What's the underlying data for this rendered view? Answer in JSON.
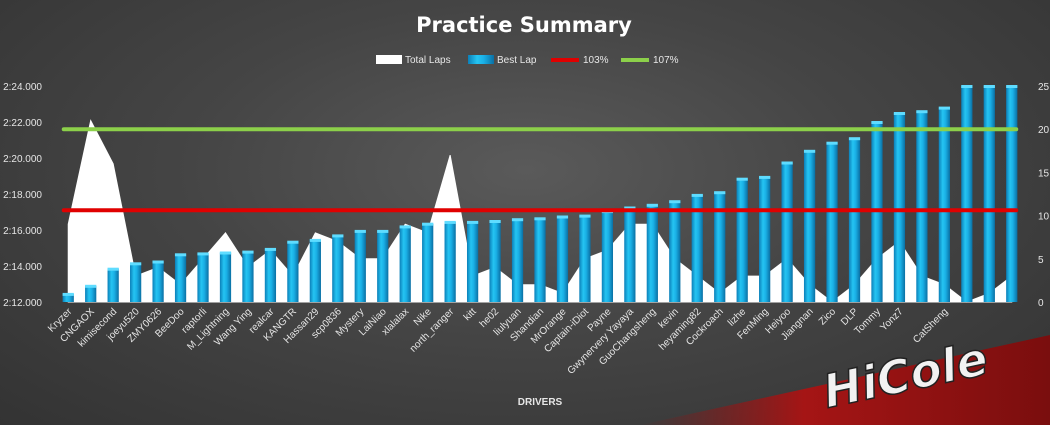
{
  "chart_data": {
    "type": "bar",
    "title": "Practice Summary",
    "xlabel": "DRIVERS",
    "ylabel": "",
    "legend": [
      "Total Laps",
      "Best Lap",
      "103%",
      "107%"
    ],
    "legend_position": "top",
    "ylim_left": [
      "2:12.000",
      "2:24.000"
    ],
    "ylim_right": [
      0,
      25
    ],
    "left_ticks": [
      "2:12.000",
      "2:14.000",
      "2:16.000",
      "2:18.000",
      "2:20.000",
      "2:22.000",
      "2:24.000"
    ],
    "right_ticks": [
      "0",
      "5",
      "10",
      "15",
      "20",
      "25"
    ],
    "categories": [
      "Kryzer",
      "CNGAOX",
      "kimisecond",
      "joeyu520",
      "ZMY0626",
      "BeeDoo",
      "raptorli",
      "M_Lightning",
      "Wang Ying",
      "realcar",
      "KANGTR",
      "Hassan29",
      "scp0836",
      "Mystery",
      "LaiNiao",
      "xlalalax",
      "Nike",
      "north_ranger",
      "kitt",
      "he02",
      "liulyuan",
      "Shandian",
      "MrOrange",
      "Captain-iDiot",
      "Payne",
      "Gwynervery Yayaya",
      "GuoChangsheng",
      "kevin",
      "heyaming82",
      "Cockroach",
      "lizhe",
      "FenMing",
      "Heiyoo",
      "Jiangnan",
      "Zico",
      "DLP",
      "Tommy",
      "Yonz7",
      "",
      "CatSheng",
      "",
      "",
      ""
    ],
    "series": [
      {
        "name": "Best Lap",
        "type": "bar",
        "color": "#17a8e0",
        "values": [
          132.45,
          132.9,
          133.85,
          134.15,
          134.25,
          134.65,
          134.7,
          134.75,
          134.8,
          134.95,
          135.35,
          135.45,
          135.7,
          135.95,
          135.95,
          136.2,
          136.35,
          136.45,
          136.45,
          136.5,
          136.6,
          136.65,
          136.75,
          136.8,
          137.05,
          137.25,
          137.4,
          137.6,
          137.95,
          138.1,
          138.85,
          138.95,
          139.75,
          140.4,
          140.85,
          141.1,
          142.0,
          142.5,
          142.6,
          142.8,
          144.0,
          144.0,
          144.0
        ]
      },
      {
        "name": "Total Laps",
        "type": "area",
        "color": "#ffffff",
        "values": [
          9,
          21,
          16,
          3,
          4,
          2,
          5,
          8,
          4,
          6,
          3,
          8,
          7,
          5,
          5,
          9,
          8,
          17,
          3,
          4,
          2,
          2,
          1,
          5,
          6,
          9,
          9,
          5,
          3,
          1,
          3,
          3,
          5,
          2,
          0,
          2,
          5,
          7,
          3,
          2,
          0,
          1,
          3
        ]
      },
      {
        "name": "103%",
        "type": "line",
        "color": "#e00000",
        "value": 137.1
      },
      {
        "name": "107%",
        "type": "line",
        "color": "#8cd04a",
        "value": 141.6
      }
    ]
  },
  "logo_text": "HiCole"
}
